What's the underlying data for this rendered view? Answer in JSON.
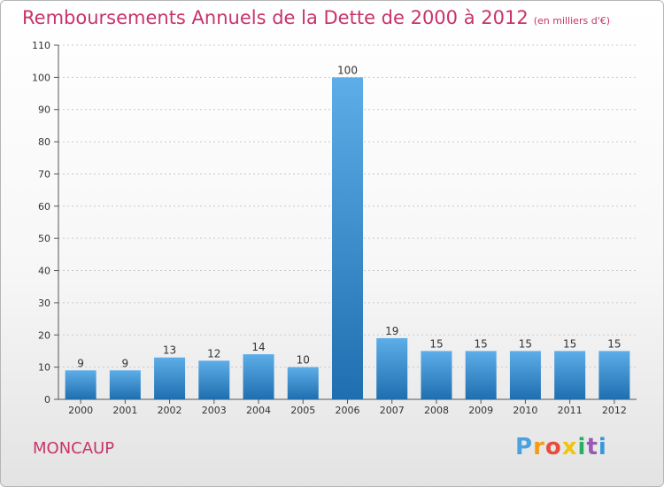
{
  "title": "Remboursements Annuels de la Dette de 2000 à 2012",
  "unit": "(en milliers d'€)",
  "commune": "MONCAUP",
  "logo": {
    "text": "Proxiti",
    "colors": [
      "#4aa3df",
      "#f39c12",
      "#e74c3c",
      "#f1c40f",
      "#27ae60",
      "#9b59b6",
      "#3498db"
    ]
  },
  "colors": {
    "bar_top": "#5dade8",
    "bar_bottom": "#1f6fb0",
    "title": "#c8336b",
    "grid": "#c9c9c9"
  },
  "chart_data": {
    "type": "bar",
    "title": "Remboursements Annuels de la Dette de 2000 à 2012",
    "categories": [
      "2000",
      "2001",
      "2002",
      "2003",
      "2004",
      "2005",
      "2006",
      "2007",
      "2008",
      "2009",
      "2010",
      "2011",
      "2012"
    ],
    "values": [
      9,
      9,
      13,
      12,
      14,
      10,
      100,
      19,
      15,
      15,
      15,
      15,
      15
    ],
    "data_labels": [
      "9",
      "9",
      "13",
      "12",
      "14",
      "10",
      "100",
      "19",
      "15",
      "15",
      "15",
      "15",
      "15"
    ],
    "ylim": [
      0,
      110
    ],
    "yticks": [
      0,
      10,
      20,
      30,
      40,
      50,
      60,
      70,
      80,
      90,
      100,
      110
    ],
    "grid": true,
    "legend": "none"
  }
}
